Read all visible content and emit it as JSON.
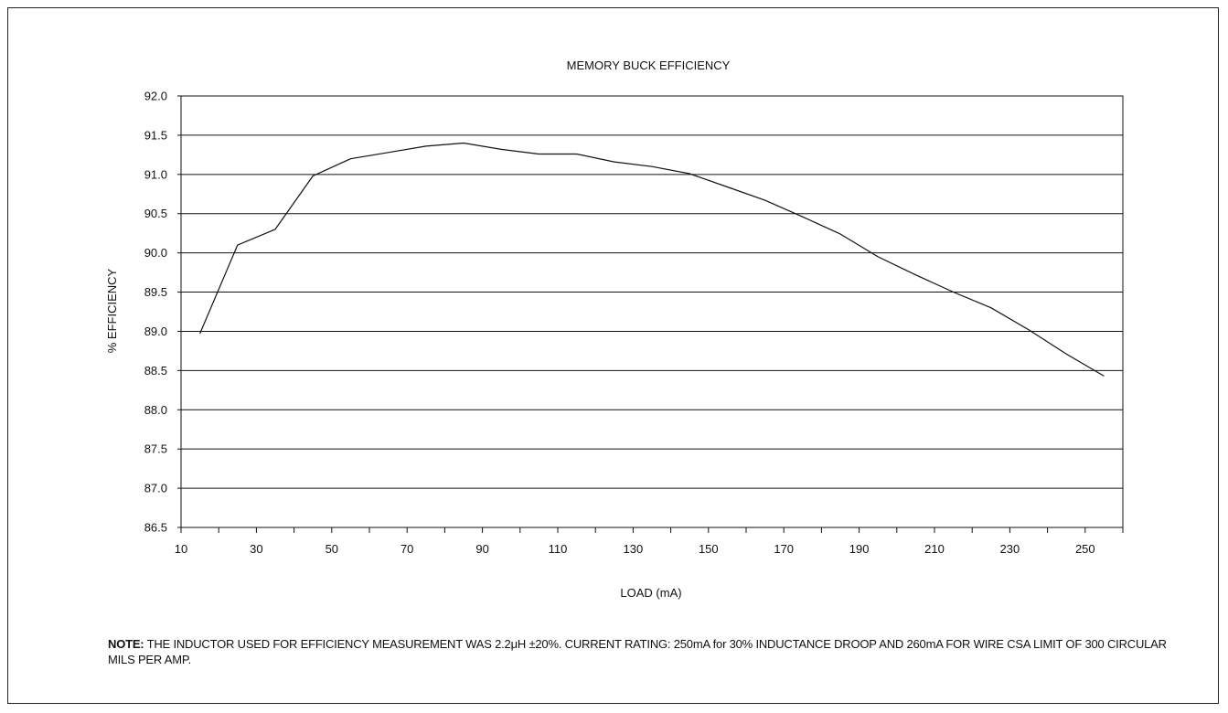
{
  "chart_data": {
    "type": "line",
    "title": "MEMORY BUCK EFFICIENCY",
    "xlabel": "LOAD (mA)",
    "ylabel": "% EFFICIENCY",
    "xlim": [
      10,
      260
    ],
    "ylim": [
      86.5,
      92.0
    ],
    "x_ticks": [
      10,
      30,
      50,
      70,
      90,
      110,
      130,
      150,
      170,
      190,
      210,
      230,
      250
    ],
    "y_ticks": [
      "86.5",
      "87.0",
      "87.5",
      "88.0",
      "88.5",
      "89.0",
      "89.5",
      "90.0",
      "90.5",
      "91.0",
      "91.5",
      "92.0"
    ],
    "grid": "horizontal",
    "legend": "none",
    "line_color": "#111111",
    "series": [
      {
        "x": [
          15,
          25,
          35,
          45,
          55,
          65,
          75,
          85,
          95,
          105,
          115,
          125,
          135,
          145,
          155,
          165,
          175,
          185,
          195,
          205,
          215,
          225,
          235,
          245,
          255
        ],
        "values": [
          88.97,
          90.1,
          90.3,
          90.98,
          91.2,
          91.28,
          91.36,
          91.4,
          91.32,
          91.26,
          91.26,
          91.16,
          91.1,
          91.01,
          90.84,
          90.67,
          90.46,
          90.24,
          89.95,
          89.72,
          89.5,
          89.3,
          89.02,
          88.71,
          88.43
        ]
      }
    ]
  },
  "note": {
    "label": "NOTE:",
    "text": " THE INDUCTOR USED FOR EFFICIENCY MEASUREMENT WAS 2.2μH ±20%. CURRENT RATING: 250mA for 30% INDUCTANCE DROOP AND 260mA FOR WIRE CSA LIMIT OF 300 CIRCULAR MILS PER AMP."
  }
}
